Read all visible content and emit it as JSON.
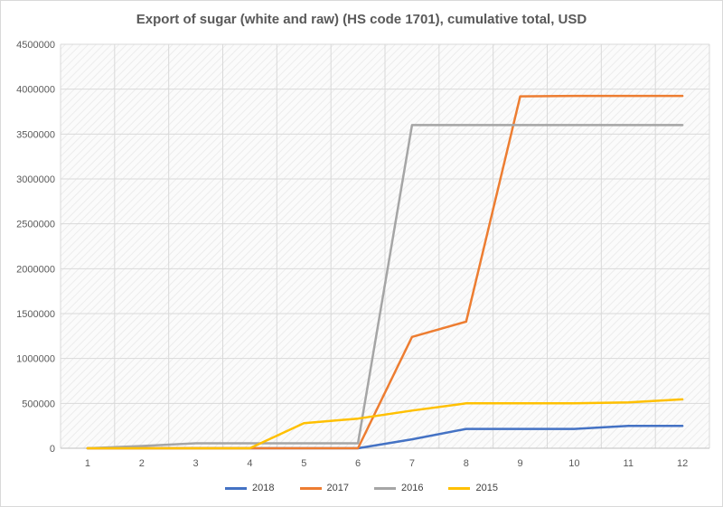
{
  "chart_data": {
    "type": "line",
    "title": "Export of sugar (white and raw) (HS code 1701), cumulative total, USD",
    "xlabel": "",
    "ylabel": "",
    "categories": [
      "1",
      "2",
      "3",
      "4",
      "5",
      "6",
      "7",
      "8",
      "9",
      "10",
      "11",
      "12"
    ],
    "ylim": [
      0,
      4500000
    ],
    "yticks": [
      0,
      500000,
      1000000,
      1500000,
      2000000,
      2500000,
      3000000,
      3500000,
      4000000,
      4500000
    ],
    "grid": true,
    "legend_position": "bottom",
    "series": [
      {
        "name": "2018",
        "color": "#4472c4",
        "values": [
          0,
          0,
          0,
          0,
          0,
          0,
          100000,
          215000,
          215000,
          215000,
          250000,
          250000
        ]
      },
      {
        "name": "2017",
        "color": "#ed7d31",
        "values": [
          0,
          0,
          0,
          0,
          0,
          0,
          1240000,
          1410000,
          3920000,
          3925000,
          3925000,
          3925000
        ]
      },
      {
        "name": "2016",
        "color": "#a5a5a5",
        "values": [
          0,
          25000,
          55000,
          55000,
          55000,
          55000,
          3600000,
          3600000,
          3600000,
          3600000,
          3600000,
          3600000
        ]
      },
      {
        "name": "2015",
        "color": "#ffc000",
        "values": [
          0,
          0,
          0,
          0,
          280000,
          330000,
          420000,
          500000,
          500000,
          500000,
          510000,
          545000
        ]
      }
    ]
  }
}
